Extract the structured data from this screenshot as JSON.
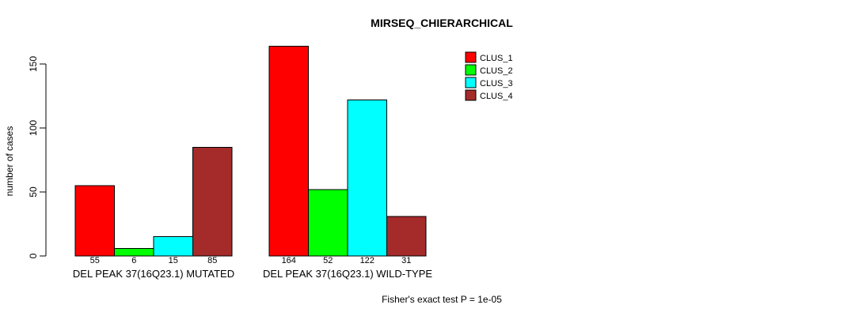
{
  "title": "MIRSEQ_CHIERARCHICAL",
  "footer": "Fisher's exact test P = 1e-05",
  "chart_data": {
    "type": "bar",
    "title": "MIRSEQ_CHIERARCHICAL",
    "ylabel": "number of cases",
    "xlabel": "",
    "ylim": [
      0,
      164
    ],
    "yticks": [
      0,
      50,
      100,
      150
    ],
    "grid": false,
    "legend_position": "top-right",
    "bar_border_color": "#000000",
    "annotation": "Fisher's exact test P = 1e-05",
    "categories": [
      "DEL PEAK 37(16Q23.1) MUTATED",
      "DEL PEAK 37(16Q23.1) WILD-TYPE"
    ],
    "series": [
      {
        "name": "CLUS_1",
        "color": "#FF0000",
        "values": [
          55,
          164
        ]
      },
      {
        "name": "CLUS_2",
        "color": "#00FF00",
        "values": [
          6,
          52
        ]
      },
      {
        "name": "CLUS_3",
        "color": "#00FFFF",
        "values": [
          15,
          122
        ]
      },
      {
        "name": "CLUS_4",
        "color": "#A52A2A",
        "values": [
          85,
          31
        ]
      }
    ],
    "groups": [
      {
        "label": "DEL PEAK 37(16Q23.1) MUTATED",
        "values": [
          55,
          6,
          15,
          85
        ]
      },
      {
        "label": "DEL PEAK 37(16Q23.1) WILD-TYPE",
        "values": [
          164,
          52,
          122,
          31
        ]
      }
    ]
  }
}
